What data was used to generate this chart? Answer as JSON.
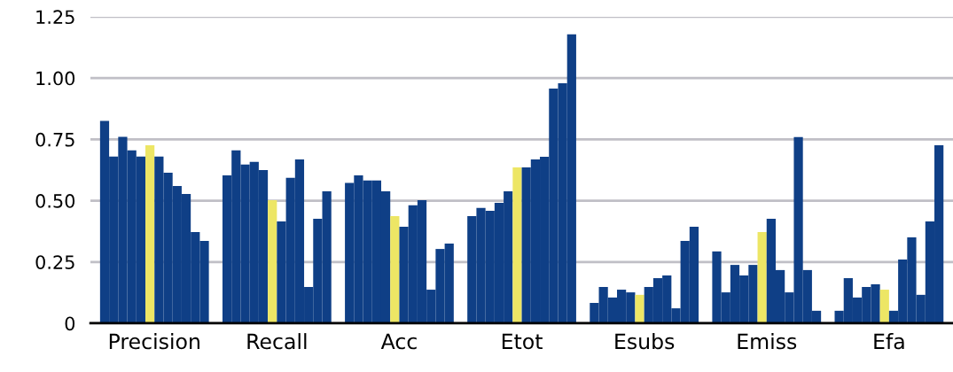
{
  "chart_data": {
    "type": "bar",
    "categories": [
      "Precision",
      "Recall",
      "Acc",
      "Etot",
      "Esubs",
      "Emiss",
      "Efa"
    ],
    "series": [
      {
        "color": "#0f3f86",
        "values": [
          0.825,
          0.603,
          0.572,
          0.437,
          0.083,
          0.293,
          0.051
        ]
      },
      {
        "color": "#0f3f86",
        "values": [
          0.68,
          0.705,
          0.603,
          0.47,
          0.148,
          0.126,
          0.184
        ]
      },
      {
        "color": "#0f3f86",
        "values": [
          0.76,
          0.647,
          0.582,
          0.459,
          0.105,
          0.238,
          0.105
        ]
      },
      {
        "color": "#0f3f86",
        "values": [
          0.705,
          0.658,
          0.582,
          0.491,
          0.137,
          0.195,
          0.148
        ]
      },
      {
        "color": "#0f3f86",
        "values": [
          0.68,
          0.625,
          0.538,
          0.538,
          0.126,
          0.238,
          0.159
        ]
      },
      {
        "color": "#ede665",
        "values": [
          0.726,
          0.502,
          0.437,
          0.636,
          0.116,
          0.372,
          0.137
        ]
      },
      {
        "color": "#0f3f86",
        "values": [
          0.68,
          0.415,
          0.394,
          0.636,
          0.148,
          0.426,
          0.051
        ]
      },
      {
        "color": "#0f3f86",
        "values": [
          0.614,
          0.593,
          0.481,
          0.668,
          0.184,
          0.217,
          0.26
        ]
      },
      {
        "color": "#0f3f86",
        "values": [
          0.56,
          0.668,
          0.502,
          0.679,
          0.195,
          0.126,
          0.35
        ]
      },
      {
        "color": "#0f3f86",
        "values": [
          0.527,
          0.148,
          0.137,
          0.957,
          0.061,
          0.759,
          0.116
        ]
      },
      {
        "color": "#0f3f86",
        "values": [
          0.372,
          0.426,
          0.303,
          0.979,
          0.336,
          0.217,
          0.415
        ]
      },
      {
        "color": "#0f3f86",
        "values": [
          0.336,
          0.538,
          0.325,
          1.178,
          0.394,
          0.051,
          0.726
        ]
      }
    ],
    "ylim": [
      0,
      1.25
    ],
    "yticks": [
      0,
      0.25,
      {
        "value": 0.5,
        "label": "0.50"
      },
      0.75,
      {
        "value": 1.0,
        "label": "1.00"
      },
      1.25
    ],
    "grid": "y"
  }
}
